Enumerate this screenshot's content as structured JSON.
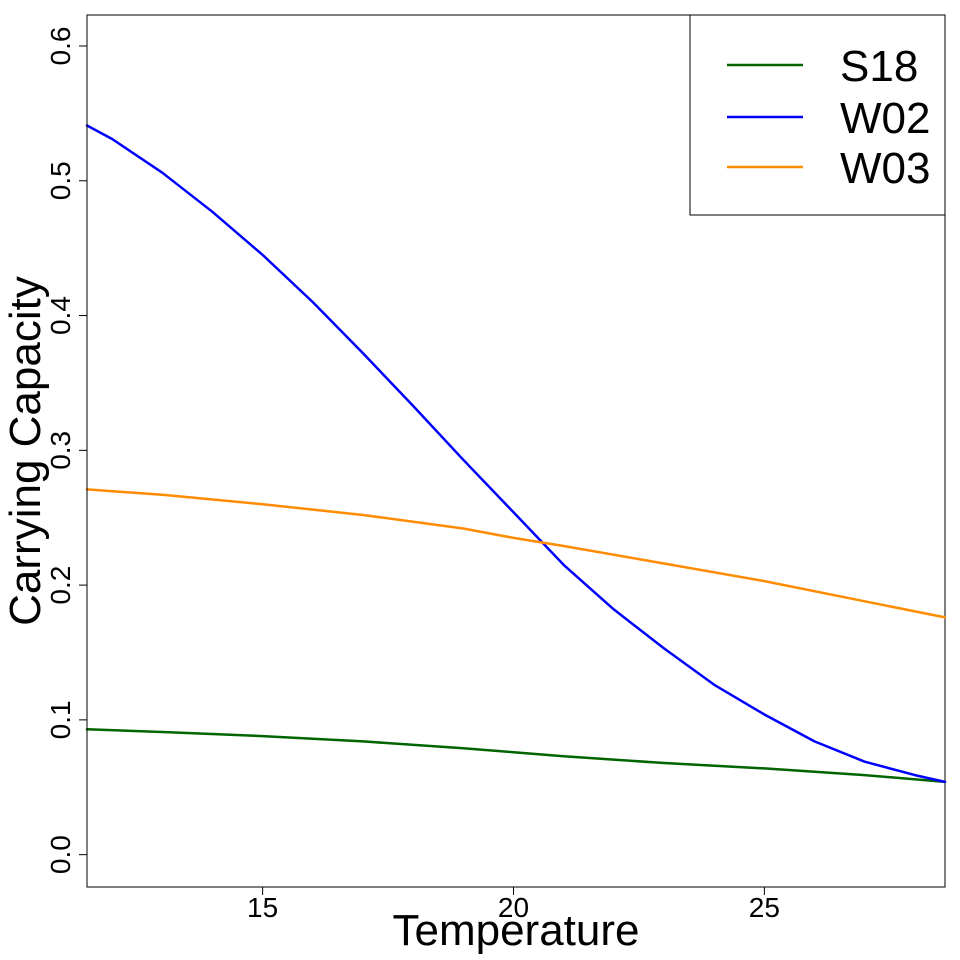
{
  "chart_data": {
    "type": "line",
    "title": "",
    "xlabel": "Temperature",
    "ylabel": "Carrying Capacity",
    "xlim": [
      11.5,
      28.6
    ],
    "ylim": [
      -0.024,
      0.623
    ],
    "xticks": [
      15,
      20,
      25
    ],
    "xtick_labels": [
      "15",
      "20",
      "25"
    ],
    "yticks": [
      0.0,
      0.1,
      0.2,
      0.3,
      0.4,
      0.5,
      0.6
    ],
    "ytick_labels": [
      "0.0",
      "0.1",
      "0.2",
      "0.3",
      "0.4",
      "0.5",
      "0.6"
    ],
    "grid": false,
    "legend_position": "top-right",
    "series": [
      {
        "name": "S18",
        "color": "#006400",
        "x": [
          11.5,
          13,
          15,
          17,
          19,
          20,
          21,
          23,
          25,
          27,
          28.6
        ],
        "y": [
          0.093,
          0.091,
          0.088,
          0.084,
          0.079,
          0.076,
          0.073,
          0.068,
          0.064,
          0.059,
          0.054
        ]
      },
      {
        "name": "W02",
        "color": "#0000ff",
        "x": [
          11.5,
          12,
          13,
          14,
          15,
          16,
          17,
          18,
          19,
          20,
          21,
          22,
          23,
          24,
          25,
          26,
          27,
          28,
          28.6
        ],
        "y": [
          0.541,
          0.531,
          0.506,
          0.477,
          0.445,
          0.41,
          0.372,
          0.333,
          0.293,
          0.254,
          0.215,
          0.182,
          0.153,
          0.126,
          0.104,
          0.084,
          0.069,
          0.059,
          0.054
        ]
      },
      {
        "name": "W03",
        "color": "#ff8c00",
        "x": [
          11.5,
          13,
          15,
          17,
          19,
          20,
          21,
          23,
          25,
          27,
          28.6
        ],
        "y": [
          0.271,
          0.267,
          0.26,
          0.252,
          0.242,
          0.235,
          0.229,
          0.216,
          0.203,
          0.188,
          0.176
        ]
      }
    ]
  }
}
